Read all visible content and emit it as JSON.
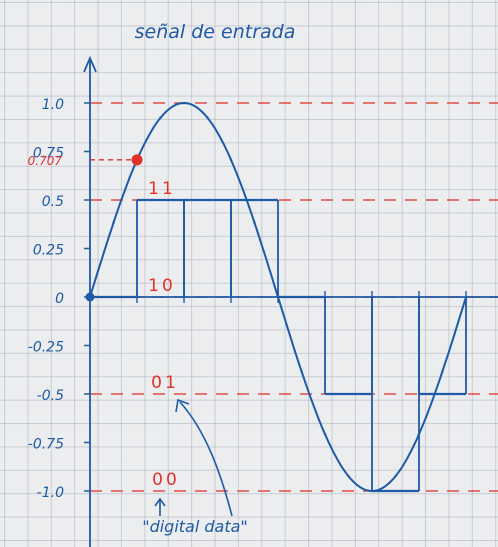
{
  "chart_data": {
    "type": "line",
    "title": "señal de entrada",
    "xlabel": "",
    "ylabel": "",
    "ylim": [
      -1.0,
      1.0
    ],
    "ytick_labels": [
      "1.0",
      "0.75",
      "0.5",
      "0.25",
      "0",
      "-0.25",
      "-0.5",
      "-0.75",
      "-1.0"
    ],
    "ytick_values": [
      1.0,
      0.75,
      0.5,
      0.25,
      0,
      -0.25,
      -0.5,
      -0.75,
      -1.0
    ],
    "highlight": {
      "label": "0.707",
      "x": 1,
      "y": 0.707
    },
    "levels": [
      {
        "code": "11",
        "y": 0.5
      },
      {
        "code": "10",
        "y": 0
      },
      {
        "code": "01",
        "y": -0.5
      },
      {
        "code": "00",
        "y": -1.0
      }
    ],
    "reference_lines": [
      1.0,
      0.5,
      0,
      -0.5,
      -1.0
    ],
    "series": [
      {
        "x": [
          0,
          0.5,
          1,
          1.5,
          2,
          2.5,
          3,
          3.5,
          4,
          4.5,
          5,
          5.5,
          6,
          6.5,
          7,
          7.5,
          8
        ],
        "values": [
          0,
          0.383,
          0.707,
          0.924,
          1.0,
          0.924,
          0.707,
          0.383,
          0,
          -0.383,
          -0.707,
          -0.924,
          -1.0,
          -0.924,
          -0.707,
          -0.383,
          0
        ]
      },
      {
        "x": [
          0,
          1,
          2,
          3,
          4,
          5,
          6,
          7,
          8
        ],
        "values": [
          0,
          0.5,
          0.5,
          0.5,
          0,
          -0.5,
          -1.0,
          -0.5,
          -0.5
        ]
      }
    ],
    "annotation": "\"digital data\"",
    "colors": {
      "ink": "#1f5aa6",
      "red": "#e0312b",
      "grid": "#a9b1c0"
    }
  }
}
